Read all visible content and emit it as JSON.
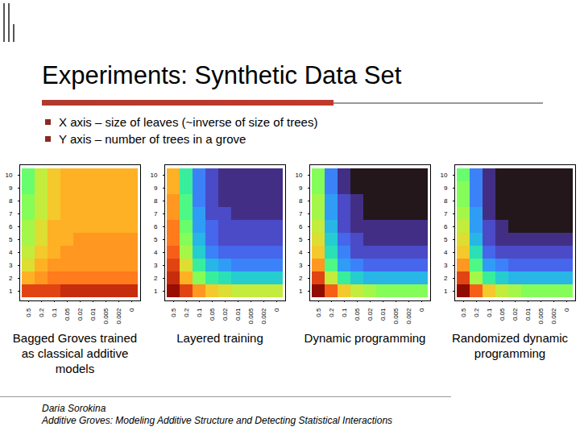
{
  "slide": {
    "title": "Experiments: Synthetic Data Set",
    "bullets": [
      "X axis – size of leaves (~inverse of size of trees)",
      "Y axis – number of trees in a grove"
    ],
    "footer": [
      "Daria Sorokina",
      "Additive Groves: Modeling Additive Structure and Detecting Statistical Interactions"
    ]
  },
  "chart_data": [
    {
      "type": "heatmap",
      "caption": "Bagged Groves trained as classical additive models",
      "x": [
        "0.5",
        "0.2",
        "0.1",
        "0.05",
        "0.02",
        "0.01",
        "0.005",
        "0.002",
        "0"
      ],
      "y": [
        1,
        2,
        3,
        4,
        5,
        6,
        7,
        8,
        9,
        10
      ],
      "color_range": [
        0.1,
        0.35
      ],
      "cells": [
        [
          0.31,
          0.31,
          0.31,
          0.32,
          0.32,
          0.32,
          0.32,
          0.32,
          0.32
        ],
        [
          0.27,
          0.28,
          0.29,
          0.29,
          0.29,
          0.29,
          0.29,
          0.29,
          0.29
        ],
        [
          0.25,
          0.27,
          0.28,
          0.28,
          0.28,
          0.28,
          0.28,
          0.28,
          0.28
        ],
        [
          0.24,
          0.26,
          0.27,
          0.28,
          0.28,
          0.28,
          0.28,
          0.28,
          0.28
        ],
        [
          0.23,
          0.25,
          0.27,
          0.27,
          0.28,
          0.28,
          0.28,
          0.28,
          0.28
        ],
        [
          0.23,
          0.25,
          0.27,
          0.27,
          0.27,
          0.27,
          0.27,
          0.27,
          0.27
        ],
        [
          0.22,
          0.24,
          0.26,
          0.27,
          0.27,
          0.27,
          0.27,
          0.27,
          0.27
        ],
        [
          0.22,
          0.24,
          0.26,
          0.27,
          0.27,
          0.27,
          0.27,
          0.27,
          0.27
        ],
        [
          0.21,
          0.24,
          0.26,
          0.27,
          0.27,
          0.27,
          0.27,
          0.27,
          0.27
        ],
        [
          0.21,
          0.24,
          0.26,
          0.27,
          0.27,
          0.27,
          0.27,
          0.27,
          0.27
        ]
      ]
    },
    {
      "type": "heatmap",
      "caption": "Layered training",
      "x": [
        "0.5",
        "0.2",
        "0.1",
        "0.05",
        "0.02",
        "0.01",
        "0.005",
        "0.002",
        "0"
      ],
      "y": [
        1,
        2,
        3,
        4,
        5,
        6,
        7,
        8,
        9,
        10
      ],
      "color_range": [
        0.1,
        0.35
      ],
      "cells": [
        [
          0.34,
          0.31,
          0.28,
          0.26,
          0.25,
          0.24,
          0.24,
          0.24,
          0.24
        ],
        [
          0.32,
          0.27,
          0.22,
          0.19,
          0.18,
          0.17,
          0.17,
          0.17,
          0.17
        ],
        [
          0.31,
          0.25,
          0.19,
          0.16,
          0.15,
          0.14,
          0.14,
          0.14,
          0.14
        ],
        [
          0.3,
          0.23,
          0.17,
          0.14,
          0.13,
          0.13,
          0.13,
          0.13,
          0.13
        ],
        [
          0.29,
          0.22,
          0.16,
          0.13,
          0.12,
          0.12,
          0.12,
          0.12,
          0.12
        ],
        [
          0.29,
          0.21,
          0.15,
          0.13,
          0.12,
          0.12,
          0.12,
          0.12,
          0.12
        ],
        [
          0.28,
          0.2,
          0.15,
          0.12,
          0.12,
          0.11,
          0.11,
          0.11,
          0.11
        ],
        [
          0.28,
          0.2,
          0.14,
          0.12,
          0.11,
          0.11,
          0.11,
          0.11,
          0.11
        ],
        [
          0.27,
          0.19,
          0.14,
          0.12,
          0.11,
          0.11,
          0.11,
          0.11,
          0.11
        ],
        [
          0.27,
          0.19,
          0.14,
          0.12,
          0.11,
          0.11,
          0.11,
          0.11,
          0.11
        ]
      ]
    },
    {
      "type": "heatmap",
      "caption": "Dynamic programming",
      "x": [
        "0.5",
        "0.2",
        "0.1",
        "0.05",
        "0.02",
        "0.01",
        "0.005",
        "0.002",
        "0"
      ],
      "y": [
        1,
        2,
        3,
        4,
        5,
        6,
        7,
        8,
        9,
        10
      ],
      "color_range": [
        0.1,
        0.35
      ],
      "cells": [
        [
          0.35,
          0.3,
          0.26,
          0.24,
          0.23,
          0.22,
          0.22,
          0.22,
          0.22
        ],
        [
          0.31,
          0.24,
          0.19,
          0.17,
          0.16,
          0.16,
          0.16,
          0.16,
          0.16
        ],
        [
          0.28,
          0.2,
          0.15,
          0.14,
          0.13,
          0.13,
          0.13,
          0.13,
          0.13
        ],
        [
          0.26,
          0.18,
          0.14,
          0.12,
          0.12,
          0.12,
          0.12,
          0.12,
          0.12
        ],
        [
          0.25,
          0.17,
          0.13,
          0.12,
          0.11,
          0.11,
          0.11,
          0.11,
          0.11
        ],
        [
          0.24,
          0.16,
          0.12,
          0.11,
          0.11,
          0.11,
          0.11,
          0.11,
          0.11
        ],
        [
          0.23,
          0.15,
          0.12,
          0.11,
          0.1,
          0.1,
          0.1,
          0.1,
          0.1
        ],
        [
          0.23,
          0.15,
          0.12,
          0.11,
          0.1,
          0.1,
          0.1,
          0.1,
          0.1
        ],
        [
          0.22,
          0.14,
          0.11,
          0.1,
          0.1,
          0.1,
          0.1,
          0.1,
          0.1
        ],
        [
          0.22,
          0.14,
          0.11,
          0.1,
          0.1,
          0.1,
          0.1,
          0.1,
          0.1
        ]
      ]
    },
    {
      "type": "heatmap",
      "caption": "Randomized dynamic programming",
      "x": [
        "0.5",
        "0.2",
        "0.1",
        "0.05",
        "0.02",
        "0.01",
        "0.005",
        "0.002",
        "0"
      ],
      "y": [
        1,
        2,
        3,
        4,
        5,
        6,
        7,
        8,
        9,
        10
      ],
      "color_range": [
        0.1,
        0.35
      ],
      "cells": [
        [
          0.35,
          0.3,
          0.26,
          0.24,
          0.23,
          0.22,
          0.22,
          0.22,
          0.22
        ],
        [
          0.31,
          0.23,
          0.19,
          0.17,
          0.16,
          0.16,
          0.16,
          0.16,
          0.16
        ],
        [
          0.28,
          0.2,
          0.15,
          0.14,
          0.13,
          0.13,
          0.13,
          0.13,
          0.13
        ],
        [
          0.26,
          0.18,
          0.13,
          0.12,
          0.12,
          0.12,
          0.12,
          0.12,
          0.12
        ],
        [
          0.25,
          0.16,
          0.12,
          0.11,
          0.11,
          0.11,
          0.11,
          0.11,
          0.11
        ],
        [
          0.24,
          0.15,
          0.12,
          0.11,
          0.1,
          0.1,
          0.1,
          0.1,
          0.1
        ],
        [
          0.23,
          0.15,
          0.11,
          0.1,
          0.1,
          0.1,
          0.1,
          0.1,
          0.1
        ],
        [
          0.22,
          0.14,
          0.11,
          0.1,
          0.1,
          0.1,
          0.1,
          0.1,
          0.1
        ],
        [
          0.22,
          0.14,
          0.11,
          0.1,
          0.1,
          0.1,
          0.1,
          0.1,
          0.1
        ],
        [
          0.21,
          0.14,
          0.11,
          0.1,
          0.1,
          0.1,
          0.1,
          0.1,
          0.1
        ]
      ]
    }
  ]
}
